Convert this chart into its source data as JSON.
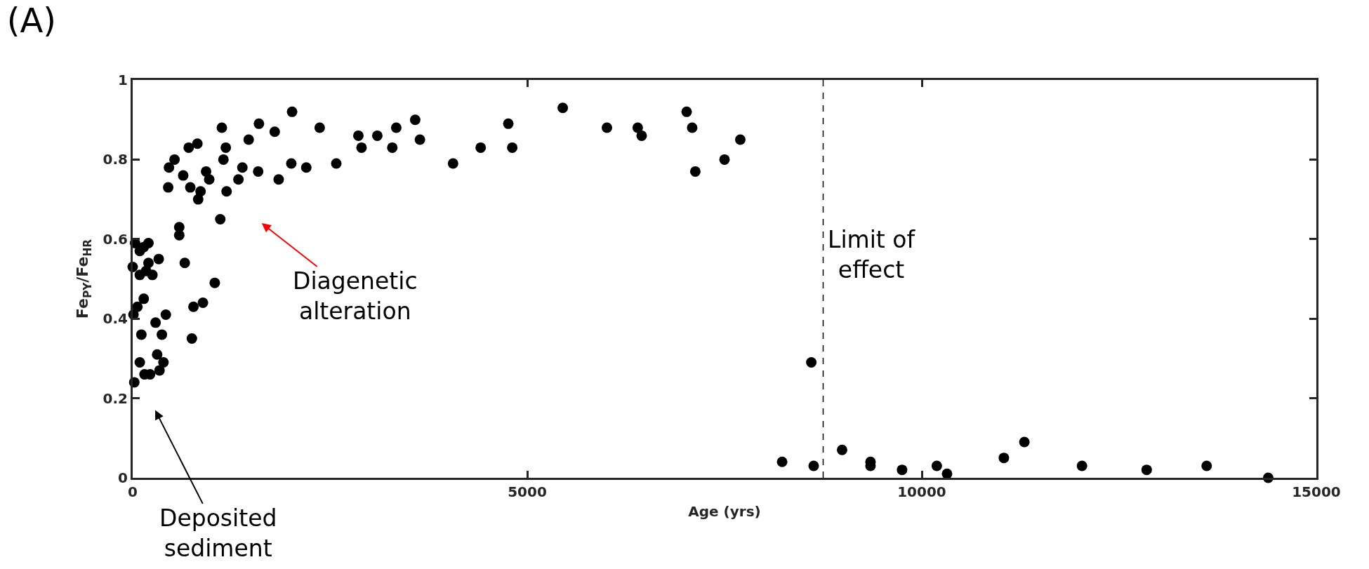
{
  "chart_data": {
    "type": "scatter",
    "title": "(A)",
    "xlabel": "Age (yrs)",
    "ylabel": "Fe$_{PY}$/Fe$_{HR}$",
    "x": [
      20,
      10,
      60,
      0,
      30,
      90,
      140,
      200,
      90,
      170,
      200,
      250,
      330,
      110,
      140,
      90,
      150,
      220,
      310,
      340,
      390,
      290,
      370,
      420,
      450,
      460,
      530,
      590,
      590,
      640,
      660,
      710,
      730,
      750,
      770,
      820,
      830,
      860,
      890,
      930,
      970,
      1040,
      1110,
      1130,
      1150,
      1180,
      1190,
      1340,
      1390,
      1470,
      1590,
      1600,
      1800,
      1850,
      2020,
      2010,
      2200,
      2370,
      2580,
      2860,
      2900,
      3100,
      3290,
      3340,
      3580,
      3640,
      4060,
      4410,
      4760,
      4810,
      5450,
      6010,
      6400,
      6450,
      7020,
      7090,
      7130,
      7500,
      7700,
      8600,
      8230,
      8630,
      8990,
      9350,
      9350,
      9750,
      10190,
      10320,
      11040,
      11300,
      12030,
      12850,
      13610,
      14390
    ],
    "values": [
      0.24,
      0.41,
      0.43,
      0.53,
      0.59,
      0.57,
      0.58,
      0.59,
      0.51,
      0.52,
      0.54,
      0.51,
      0.55,
      0.36,
      0.45,
      0.29,
      0.26,
      0.26,
      0.31,
      0.27,
      0.29,
      0.39,
      0.36,
      0.41,
      0.73,
      0.78,
      0.8,
      0.61,
      0.63,
      0.76,
      0.54,
      0.83,
      0.73,
      0.35,
      0.43,
      0.84,
      0.7,
      0.72,
      0.44,
      0.77,
      0.75,
      0.49,
      0.65,
      0.88,
      0.8,
      0.83,
      0.72,
      0.75,
      0.78,
      0.85,
      0.77,
      0.89,
      0.87,
      0.75,
      0.92,
      0.79,
      0.78,
      0.88,
      0.79,
      0.86,
      0.83,
      0.86,
      0.83,
      0.88,
      0.9,
      0.85,
      0.79,
      0.83,
      0.89,
      0.83,
      0.93,
      0.88,
      0.88,
      0.86,
      0.92,
      0.88,
      0.77,
      0.8,
      0.85,
      0.29,
      0.04,
      0.03,
      0.07,
      0.04,
      0.03,
      0.02,
      0.03,
      0.01,
      0.05,
      0.09,
      0.03,
      0.02,
      0.03,
      0.0
    ],
    "color": "#000000",
    "marker": "circle",
    "xlim": [
      0,
      15000
    ],
    "xticks": [
      0,
      5000,
      10000,
      15000
    ],
    "ylim": [
      0,
      1
    ],
    "yticks": [
      0,
      0.2,
      0.4,
      0.6,
      0.8,
      1
    ],
    "ref_lines": [
      {
        "axis": "x",
        "value": 8750,
        "label": "Limit of effect",
        "color": "#000000",
        "line_style": "dashed"
      }
    ],
    "annotations": [
      "Diagenetic alteration",
      "Deposited sediment"
    ],
    "legend": false
  }
}
